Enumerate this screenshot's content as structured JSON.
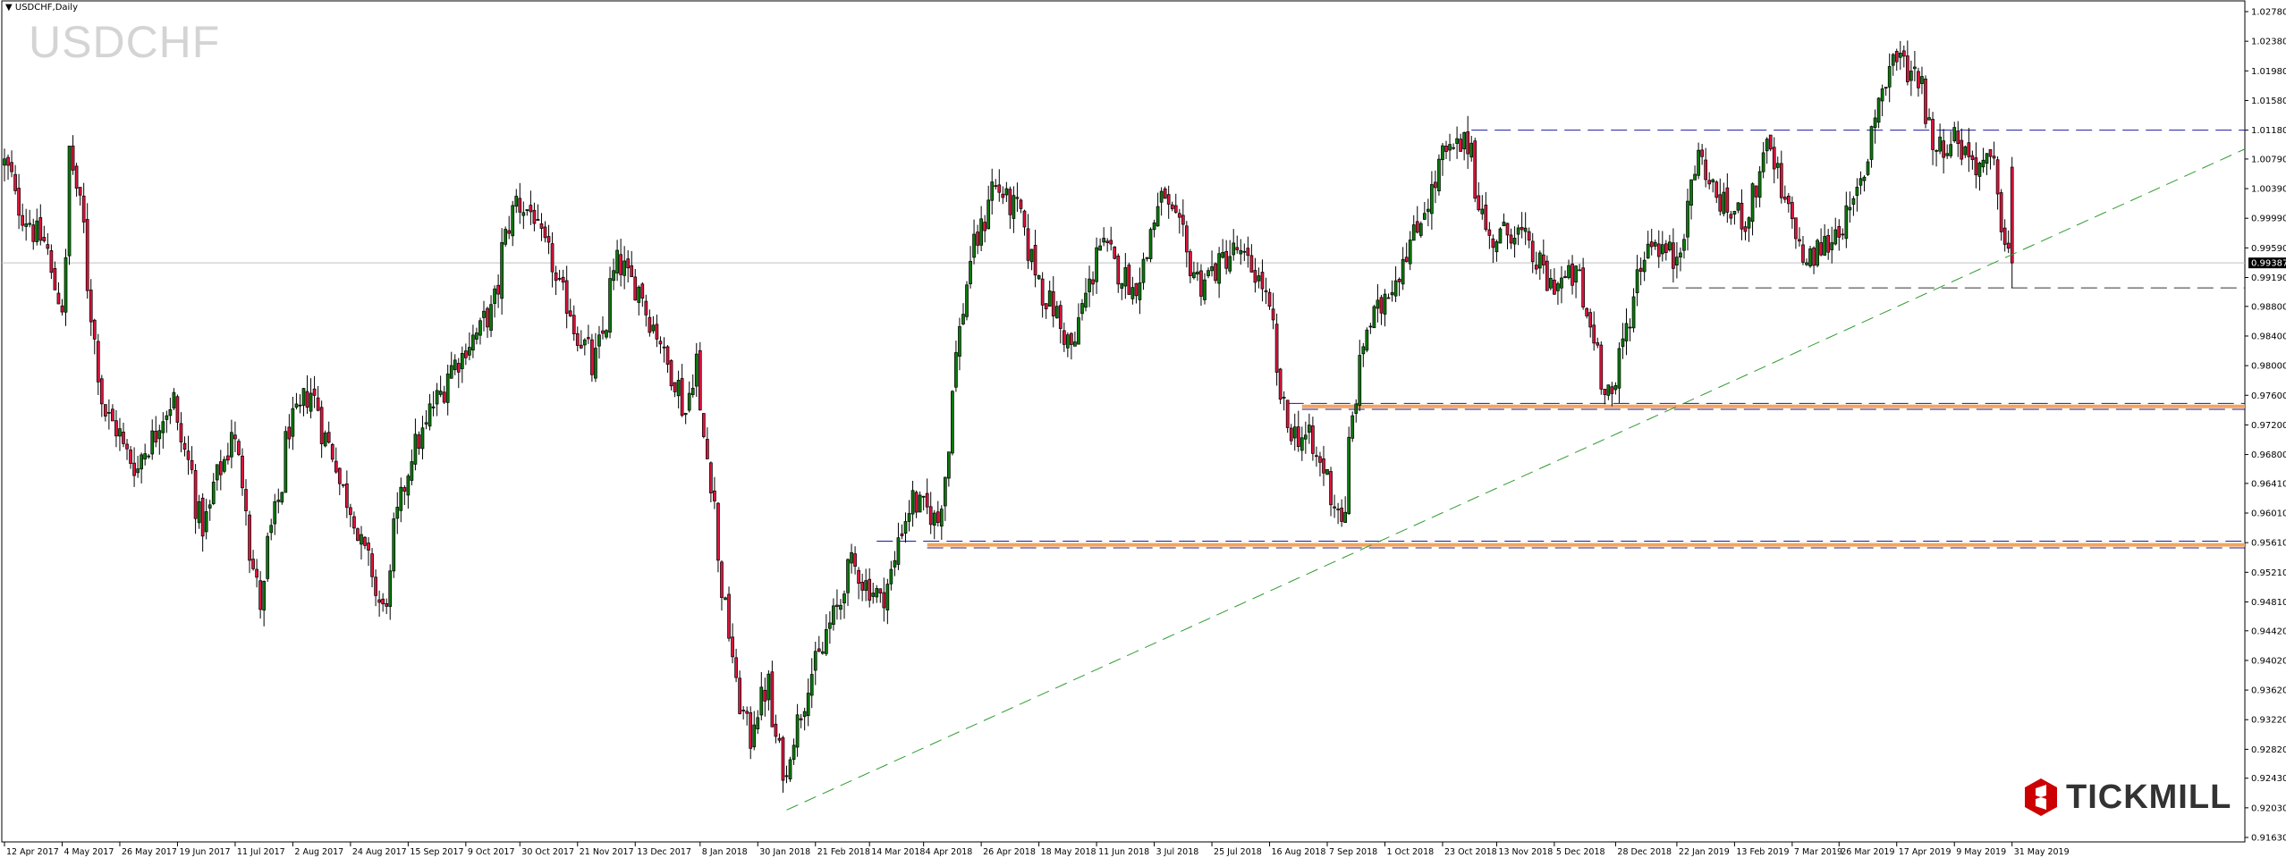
{
  "header": {
    "title": "USDCHF,Daily",
    "watermark": "USDCHF"
  },
  "logo": {
    "text": "TICKMILL",
    "color": "#cc0000"
  },
  "colors": {
    "bull": "#0a7a0a",
    "bear": "#dc143c",
    "trendline": "#2e9b2e",
    "level_blue": "#1a1aa0",
    "level_orange": "#f4a460",
    "level_black": "#333333",
    "current_price": "#c0c0c0"
  },
  "chart_data": {
    "type": "candlestick",
    "symbol": "USDCHF",
    "timeframe": "Daily",
    "current_price": "0.99387",
    "ylim": [
      0.9163,
      1.0278
    ],
    "y_ticks": [
      "1.02780",
      "1.02380",
      "1.01980",
      "1.01580",
      "1.01180",
      "1.00790",
      "1.00390",
      "0.99990",
      "0.99590",
      "0.99190",
      "0.98800",
      "0.98400",
      "0.98000",
      "0.97600",
      "0.97200",
      "0.96800",
      "0.96410",
      "0.96010",
      "0.95610",
      "0.95210",
      "0.94810",
      "0.94420",
      "0.94020",
      "0.93620",
      "0.93220",
      "0.92820",
      "0.92430",
      "0.92030",
      "0.91630"
    ],
    "x_ticks": [
      {
        "date": "2017-04-12",
        "label": "12 Apr 2017"
      },
      {
        "date": "2017-05-04",
        "label": "4 May 2017"
      },
      {
        "date": "2017-05-26",
        "label": "26 May 2017"
      },
      {
        "date": "2017-06-19",
        "label": "19 Jun 2017"
      },
      {
        "date": "2017-07-11",
        "label": "11 Jul 2017"
      },
      {
        "date": "2017-08-02",
        "label": "2 Aug 2017"
      },
      {
        "date": "2017-08-24",
        "label": "24 Aug 2017"
      },
      {
        "date": "2017-09-15",
        "label": "15 Sep 2017"
      },
      {
        "date": "2017-10-09",
        "label": "9 Oct 2017"
      },
      {
        "date": "2017-10-30",
        "label": "30 Oct 2017"
      },
      {
        "date": "2017-11-21",
        "label": "21 Nov 2017"
      },
      {
        "date": "2017-12-13",
        "label": "13 Dec 2017"
      },
      {
        "date": "2018-01-08",
        "label": "8 Jan 2018"
      },
      {
        "date": "2018-01-30",
        "label": "30 Jan 2018"
      },
      {
        "date": "2018-02-21",
        "label": "21 Feb 2018"
      },
      {
        "date": "2018-03-14",
        "label": "14 Mar 2018"
      },
      {
        "date": "2018-04-04",
        "label": "4 Apr 2018"
      },
      {
        "date": "2018-04-26",
        "label": "26 Apr 2018"
      },
      {
        "date": "2018-05-18",
        "label": "18 May 2018"
      },
      {
        "date": "2018-06-11",
        "label": "11 Jun 2018"
      },
      {
        "date": "2018-07-03",
        "label": "3 Jul 2018"
      },
      {
        "date": "2018-07-25",
        "label": "25 Jul 2018"
      },
      {
        "date": "2018-08-16",
        "label": "16 Aug 2018"
      },
      {
        "date": "2018-09-07",
        "label": "7 Sep 2018"
      },
      {
        "date": "2018-10-01",
        "label": "1 Oct 2018"
      },
      {
        "date": "2018-10-23",
        "label": "23 Oct 2018"
      },
      {
        "date": "2018-11-13",
        "label": "13 Nov 2018"
      },
      {
        "date": "2018-12-05",
        "label": "5 Dec 2018"
      },
      {
        "date": "2018-12-28",
        "label": "28 Dec 2018"
      },
      {
        "date": "2019-01-22",
        "label": "22 Jan 2019"
      },
      {
        "date": "2019-02-13",
        "label": "13 Feb 2019"
      },
      {
        "date": "2019-03-07",
        "label": "7 Mar 2019"
      },
      {
        "date": "2019-03-26",
        "label": "26 Mar 2019"
      },
      {
        "date": "2019-04-17",
        "label": "17 Apr 2019"
      },
      {
        "date": "2019-05-09",
        "label": "9 May 2019"
      },
      {
        "date": "2019-05-31",
        "label": "31 May 2019"
      }
    ],
    "approx_close_path": [
      [
        "2017-04-12",
        1.0073
      ],
      [
        "2017-04-19",
        1.0005
      ],
      [
        "2017-04-27",
        0.9967
      ],
      [
        "2017-05-04",
        0.9881
      ],
      [
        "2017-05-08",
        1.0092
      ],
      [
        "2017-05-15",
        0.991
      ],
      [
        "2017-05-19",
        0.9756
      ],
      [
        "2017-06-02",
        0.966
      ],
      [
        "2017-06-16",
        0.9756
      ],
      [
        "2017-06-28",
        0.9583
      ],
      [
        "2017-07-10",
        0.9717
      ],
      [
        "2017-07-20",
        0.9478
      ],
      [
        "2017-08-01",
        0.9717
      ],
      [
        "2017-08-09",
        0.9765
      ],
      [
        "2017-08-25",
        0.96
      ],
      [
        "2017-09-06",
        0.9468
      ],
      [
        "2017-09-15",
        0.966
      ],
      [
        "2017-10-02",
        0.9794
      ],
      [
        "2017-10-18",
        0.9871
      ],
      [
        "2017-10-27",
        1.0025
      ],
      [
        "2017-11-03",
        1.0005
      ],
      [
        "2017-11-13",
        0.991
      ],
      [
        "2017-11-27",
        0.9794
      ],
      [
        "2017-12-06",
        0.9938
      ],
      [
        "2017-12-15",
        0.99
      ],
      [
        "2018-01-02",
        0.9737
      ],
      [
        "2018-01-05",
        0.9813
      ],
      [
        "2018-01-12",
        0.962
      ],
      [
        "2018-01-19",
        0.941
      ],
      [
        "2018-01-26",
        0.9295
      ],
      [
        "2018-02-02",
        0.937
      ],
      [
        "2018-02-09",
        0.924
      ],
      [
        "2018-02-16",
        0.935
      ],
      [
        "2018-02-27",
        0.945
      ],
      [
        "2018-03-07",
        0.953
      ],
      [
        "2018-03-19",
        0.948
      ],
      [
        "2018-03-30",
        0.962
      ],
      [
        "2018-04-10",
        0.959
      ],
      [
        "2018-04-20",
        0.991
      ],
      [
        "2018-05-01",
        1.0044
      ],
      [
        "2018-05-11",
        1.0005
      ],
      [
        "2018-05-18",
        0.992
      ],
      [
        "2018-06-01",
        0.982
      ],
      [
        "2018-06-11",
        0.9967
      ],
      [
        "2018-06-25",
        0.99
      ],
      [
        "2018-07-06",
        1.0034
      ],
      [
        "2018-07-20",
        0.991
      ],
      [
        "2018-08-03",
        0.9957
      ],
      [
        "2018-08-14",
        0.991
      ],
      [
        "2018-08-23",
        0.9717
      ],
      [
        "2018-08-31",
        0.97
      ],
      [
        "2018-09-06",
        0.966
      ],
      [
        "2018-09-14",
        0.959
      ],
      [
        "2018-09-21",
        0.983
      ],
      [
        "2018-10-04",
        0.992
      ],
      [
        "2018-10-15",
        1.0005
      ],
      [
        "2018-10-23",
        1.0082
      ],
      [
        "2018-11-02",
        1.0101
      ],
      [
        "2018-11-09",
        0.9967
      ],
      [
        "2018-11-20",
        0.9986
      ],
      [
        "2018-12-03",
        0.991
      ],
      [
        "2018-12-14",
        0.992
      ],
      [
        "2018-12-24",
        0.9785
      ],
      [
        "2018-12-28",
        0.9756
      ],
      [
        "2019-01-04",
        0.989
      ],
      [
        "2019-01-11",
        0.9976
      ],
      [
        "2019-01-21",
        0.994
      ],
      [
        "2019-01-30",
        1.0082
      ],
      [
        "2019-02-08",
        1.0015
      ],
      [
        "2019-02-18",
        0.9996
      ],
      [
        "2019-02-25",
        1.0101
      ],
      [
        "2019-03-04",
        1.0025
      ],
      [
        "2019-03-13",
        0.9938
      ],
      [
        "2019-03-21",
        0.9967
      ],
      [
        "2019-04-01",
        1.0015
      ],
      [
        "2019-04-10",
        1.016
      ],
      [
        "2019-04-16",
        1.0217
      ],
      [
        "2019-04-26",
        1.019
      ],
      [
        "2019-05-02",
        1.0092
      ],
      [
        "2019-05-10",
        1.011
      ],
      [
        "2019-05-17",
        1.0073
      ],
      [
        "2019-05-24",
        1.007
      ],
      [
        "2019-05-31",
        0.99387
      ]
    ],
    "levels": [
      {
        "price": 1.0118,
        "from": "2018-11-02",
        "style": "dashed",
        "color": "#1a1aa0"
      },
      {
        "price": 0.9905,
        "from": "2019-01-16",
        "style": "dashed",
        "color": "#333333"
      },
      {
        "price": 0.9749,
        "from": "2018-08-23",
        "style": "dashed",
        "color": "#1a1aa0"
      },
      {
        "price": 0.9745,
        "from": "2018-08-29",
        "style": "solid-thick",
        "color": "#f4a460"
      },
      {
        "price": 0.9741,
        "from": "2018-08-29",
        "style": "dashed",
        "color": "#1a1aa0"
      },
      {
        "price": 0.9563,
        "from": "2018-03-16",
        "style": "dashed",
        "color": "#1a1aa0"
      },
      {
        "price": 0.9558,
        "from": "2018-04-05",
        "style": "solid-thick",
        "color": "#f4a460"
      },
      {
        "price": 0.9554,
        "from": "2018-04-05",
        "style": "dashed",
        "color": "#1a1aa0"
      }
    ],
    "trendline": {
      "from": [
        "2018-02-09",
        0.92
      ],
      "through": [
        "2019-05-31",
        0.995
      ],
      "style": "dashed",
      "color": "#2e9b2e"
    }
  }
}
